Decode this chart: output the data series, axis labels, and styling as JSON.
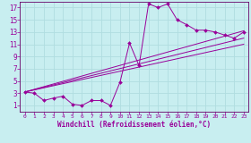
{
  "bg_color": "#c8eef0",
  "grid_color": "#b0dde0",
  "line_color": "#990099",
  "spine_color": "#660066",
  "xlabel": "Windchill (Refroidissement éolien,°C)",
  "xlim": [
    -0.5,
    23.5
  ],
  "ylim": [
    0,
    18
  ],
  "xticks": [
    0,
    1,
    2,
    3,
    4,
    5,
    6,
    7,
    8,
    9,
    10,
    11,
    12,
    13,
    14,
    15,
    16,
    17,
    18,
    19,
    20,
    21,
    22,
    23
  ],
  "yticks": [
    1,
    3,
    5,
    7,
    9,
    11,
    13,
    15,
    17
  ],
  "line1_x": [
    0,
    1,
    2,
    3,
    4,
    5,
    6,
    7,
    8,
    9,
    10,
    11,
    12,
    13,
    14,
    15,
    16,
    17,
    18,
    19,
    20,
    21,
    22,
    23
  ],
  "line1_y": [
    3.2,
    3.0,
    1.8,
    2.2,
    2.5,
    1.2,
    1.0,
    1.8,
    1.8,
    1.0,
    4.8,
    11.2,
    7.5,
    17.6,
    17.0,
    17.6,
    15.0,
    14.2,
    13.3,
    13.3,
    13.0,
    12.5,
    12.0,
    13.0
  ],
  "line2_x": [
    0,
    23
  ],
  "line2_y": [
    3.2,
    13.2
  ],
  "line3_x": [
    0,
    23
  ],
  "line3_y": [
    3.2,
    12.0
  ],
  "line4_x": [
    0,
    23
  ],
  "line4_y": [
    3.2,
    11.0
  ]
}
